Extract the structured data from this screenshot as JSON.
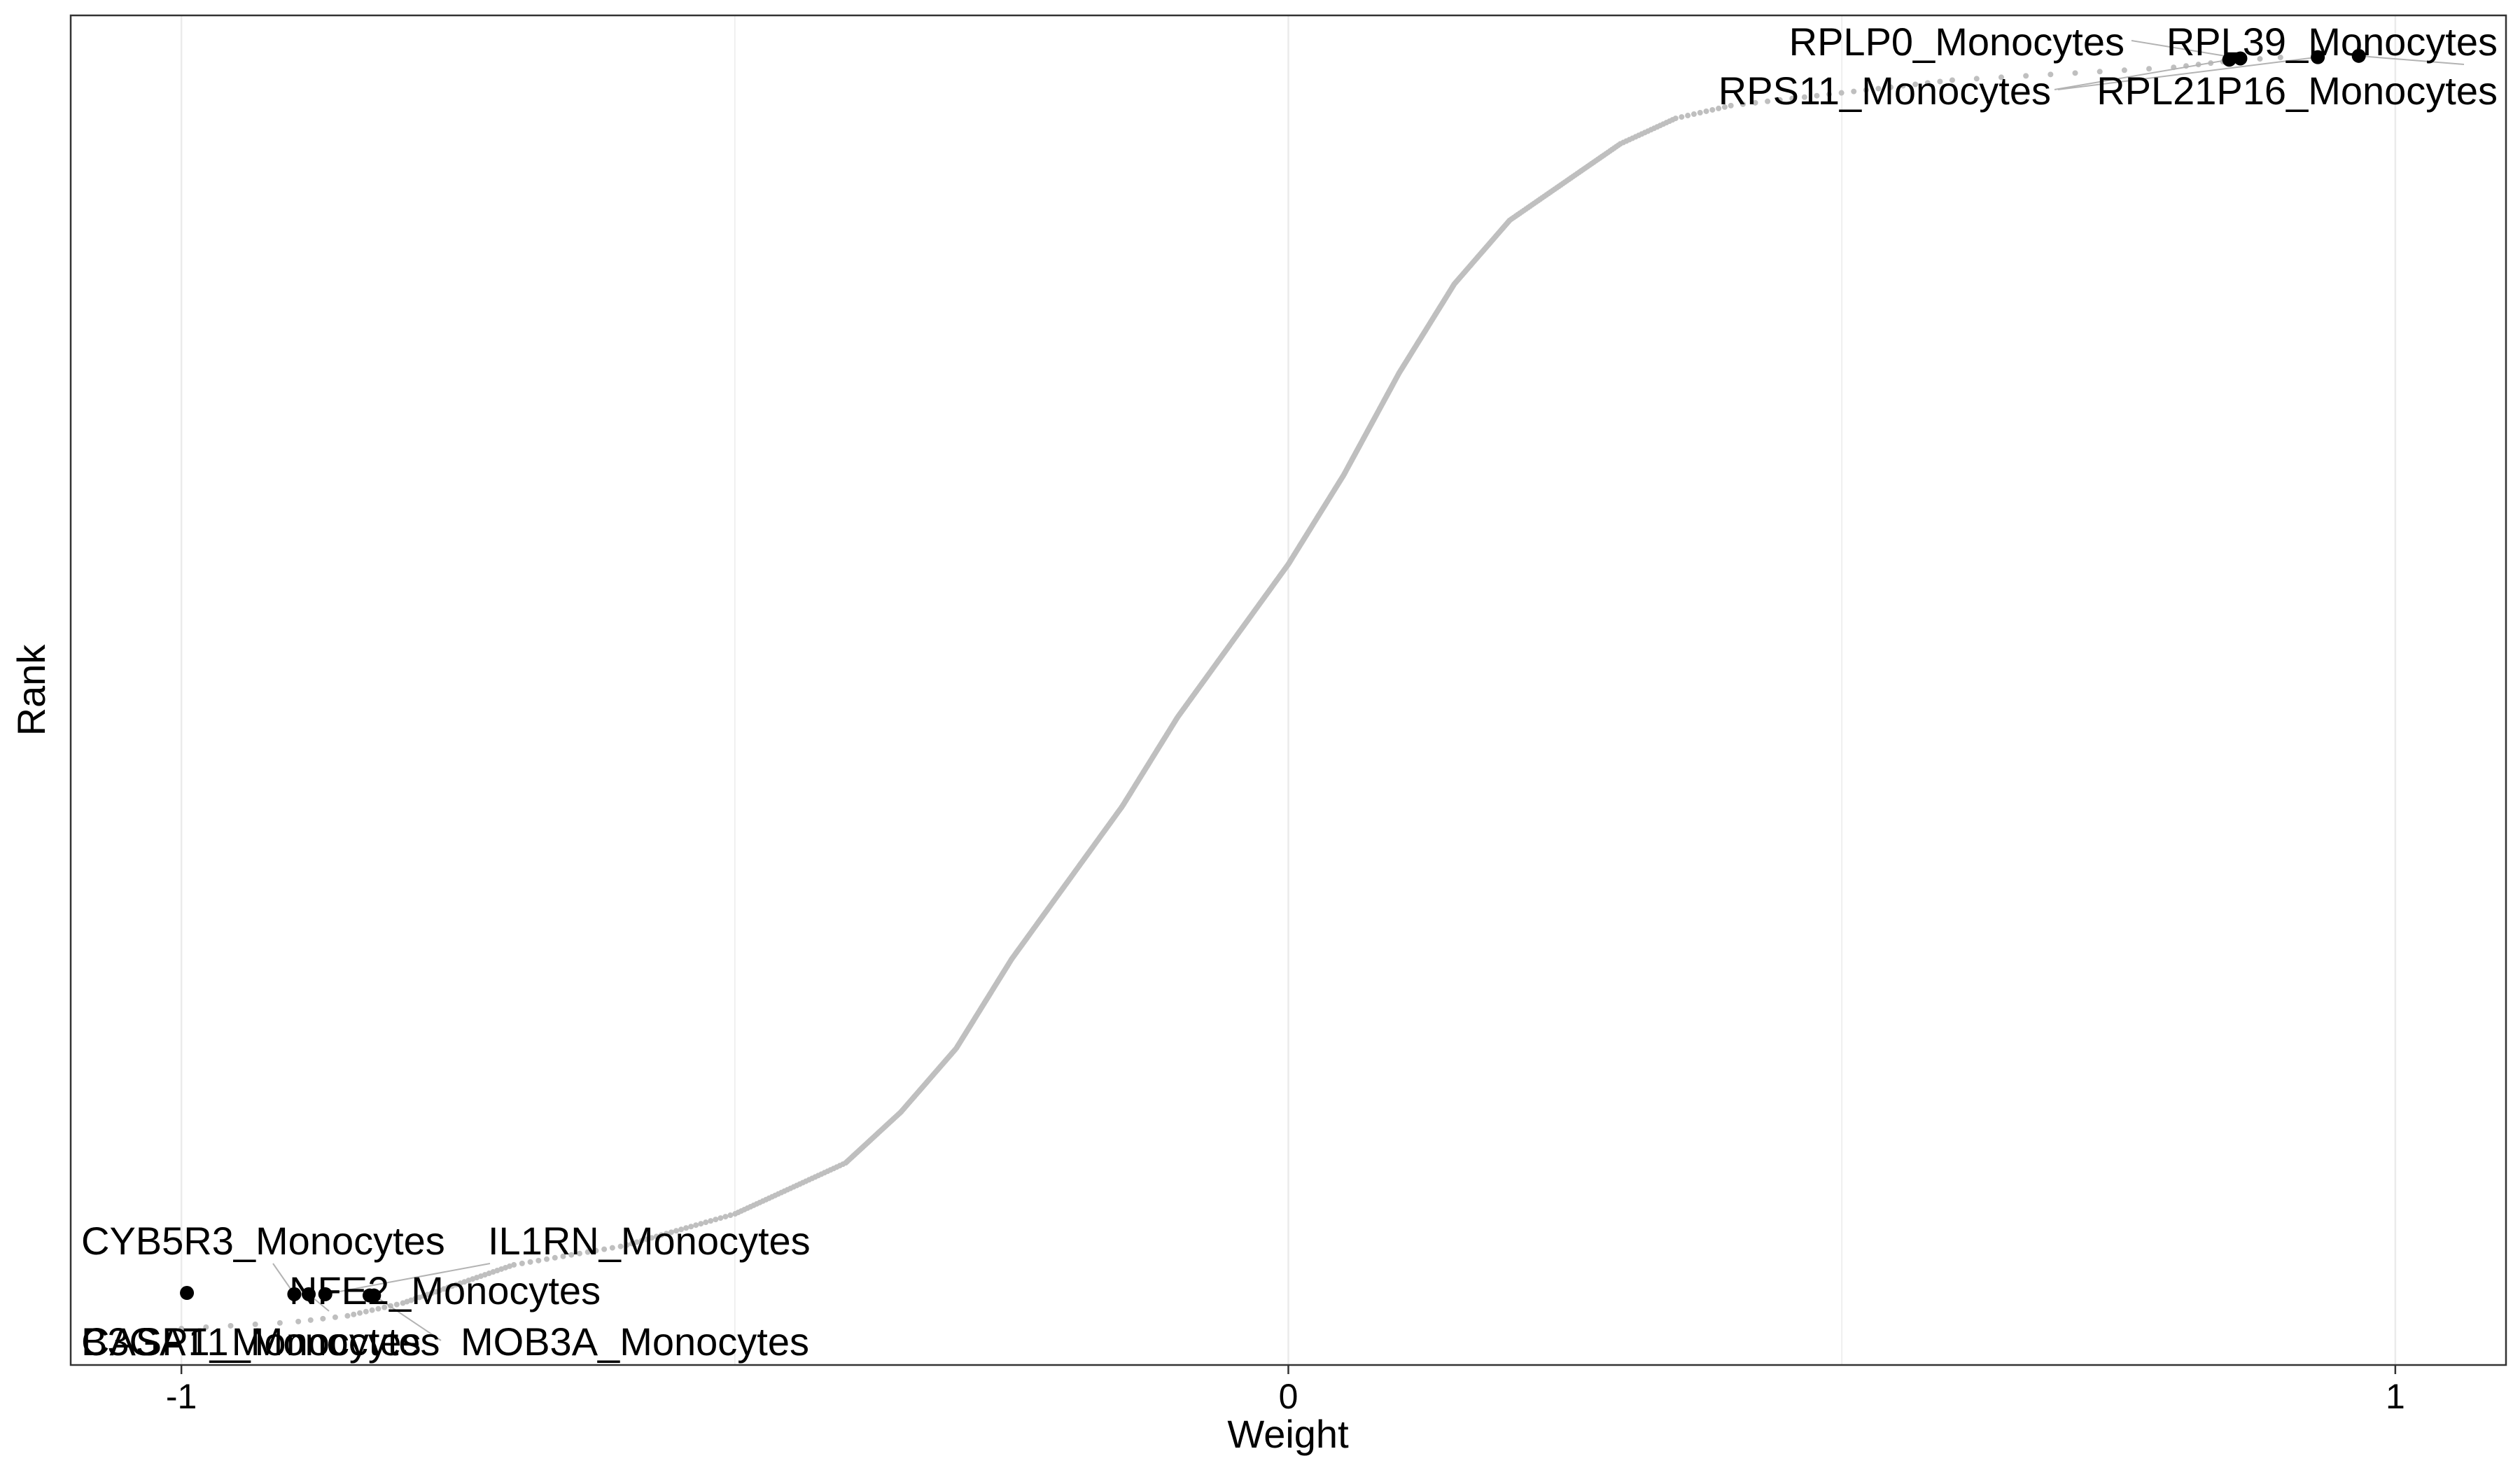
{
  "chart_data": {
    "type": "scatter",
    "title": "",
    "xlabel": "Weight",
    "ylabel": "Rank",
    "xlim": [
      -1.1,
      1.1
    ],
    "ylim": [
      0,
      1
    ],
    "x_ticks": [
      {
        "value": -1,
        "label": "-1"
      },
      {
        "value": 0,
        "label": "0"
      },
      {
        "value": 1,
        "label": "1"
      }
    ],
    "minor_x_gridlines": [
      -0.5,
      0.5
    ],
    "y_ticks_shown": false,
    "grid": true,
    "legend": "none",
    "colors": {
      "curve": "#bfbfbf",
      "highlight": "#000000",
      "grid": "#ebebeb",
      "frame": "#333333",
      "leader": "#b3b3b3"
    },
    "series": [
      {
        "role": "all-features",
        "x": [
          -1.0,
          -0.9,
          -0.85,
          -0.8,
          -0.75,
          -0.7,
          -0.6,
          -0.5,
          -0.45,
          -0.4,
          -0.35,
          -0.3,
          -0.25,
          -0.2,
          -0.15,
          -0.1,
          -0.05,
          0.0,
          0.05,
          0.1,
          0.15,
          0.2,
          0.25,
          0.3,
          0.35,
          0.4,
          0.45,
          0.5,
          0.55,
          0.6,
          0.7,
          0.8,
          0.85,
          0.9,
          0.97
        ],
        "y": [
          0.0,
          0.005,
          0.01,
          0.02,
          0.035,
          0.05,
          0.065,
          0.09,
          0.11,
          0.13,
          0.17,
          0.22,
          0.29,
          0.35,
          0.41,
          0.48,
          0.54,
          0.6,
          0.67,
          0.75,
          0.82,
          0.87,
          0.9,
          0.93,
          0.95,
          0.96,
          0.965,
          0.97,
          0.975,
          0.98,
          0.985,
          0.99,
          0.995,
          0.998,
          1.0
        ]
      }
    ],
    "highlighted_points": [
      {
        "label": "RPL39_Monocytes",
        "x": 0.967,
        "y": 0.999
      },
      {
        "label": "RPL21P16_Monocytes",
        "x": 0.93,
        "y": 0.998
      },
      {
        "label": "RPLP0_Monocytes",
        "x": 0.86,
        "y": 0.997
      },
      {
        "label": "RPS11_Monocytes",
        "x": 0.85,
        "y": 0.996
      },
      {
        "label": "CASP1_Monocytes",
        "x": -0.83,
        "y": 0.026
      },
      {
        "label": "MOB3A_Monocytes",
        "x": -0.826,
        "y": 0.026
      },
      {
        "label": "IL1RN_Monocytes",
        "x": -0.87,
        "y": 0.027
      },
      {
        "label": "NFE2_Monocytes",
        "x": -0.885,
        "y": 0.027
      },
      {
        "label": "CYB5R3_Monocytes",
        "x": -0.898,
        "y": 0.027
      },
      {
        "label": "B3GAT1_Monocytes",
        "x": -0.995,
        "y": 0.028
      }
    ]
  }
}
